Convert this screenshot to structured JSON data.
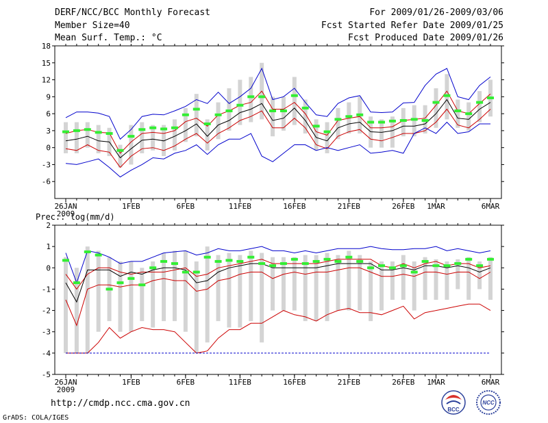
{
  "header": {
    "title": "DERF/NCC/BCC Monthly Forecast",
    "member": "Member Size=40",
    "variable": "Mean Surf. Temp.: °C",
    "period": "For 2009/01/26-2009/03/06",
    "start": "Fcst Started Refer Date 2009/01/25",
    "produced": "Fcst Produced Date 2009/01/26"
  },
  "footer": {
    "url": "http://cmdp.ncc.cma.gov.cn",
    "credit": "GrADS: COLA/IGES",
    "logo_bcc": "BCC",
    "logo_ncc": "NCC"
  },
  "colors": {
    "max": "#0000cc",
    "mean": "#000000",
    "spread": "#cc0000",
    "median": "#33ee33",
    "box": "#d4d4d4"
  },
  "chart_data": [
    {
      "type": "line",
      "title": "Mean Surf. Temp.: °C",
      "xlabel": "",
      "ylabel": "°C",
      "ylim": [
        -9,
        18
      ],
      "yticks": [
        -6,
        -3,
        0,
        3,
        6,
        9,
        12,
        15,
        18
      ],
      "x_tick_labels": [
        "26JAN",
        "1FEB",
        "6FEB",
        "11FEB",
        "16FEB",
        "21FEB",
        "26FEB",
        "1MAR",
        "6MAR"
      ],
      "x_tick_days": [
        0,
        6,
        11,
        16,
        21,
        26,
        31,
        34,
        39
      ],
      "year_label": "2009",
      "days": 40,
      "series": [
        {
          "name": "max",
          "values": [
            5.3,
            6.3,
            6.3,
            6.1,
            5.5,
            1.5,
            3.2,
            5.5,
            5.9,
            5.8,
            6.5,
            7.3,
            8.5,
            7.8,
            9.8,
            7.8,
            9.0,
            10.5,
            14.0,
            8.5,
            9.0,
            10.5,
            8.0,
            5.8,
            5.5,
            7.8,
            8.8,
            9.2,
            6.3,
            6.2,
            6.3,
            7.9,
            8.0,
            11.0,
            13.0,
            14.0,
            9.0,
            8.5,
            11.0,
            12.5
          ]
        },
        {
          "name": "p90",
          "values": [
            2.5,
            3.0,
            3.2,
            2.7,
            2.6,
            -1.0,
            1.0,
            2.5,
            2.7,
            2.5,
            3.0,
            4.6,
            5.2,
            3.8,
            5.8,
            6.5,
            7.5,
            8.0,
            10.0,
            6.8,
            6.8,
            8.0,
            6.0,
            2.8,
            2.2,
            4.8,
            5.2,
            5.5,
            3.5,
            3.5,
            3.7,
            4.8,
            5.0,
            5.2,
            7.5,
            10.0,
            6.5,
            6.0,
            7.8,
            9.5
          ]
        },
        {
          "name": "mean",
          "values": [
            1.2,
            1.5,
            2.0,
            1.2,
            1.0,
            -1.8,
            -0.2,
            1.3,
            1.5,
            1.2,
            2.0,
            3.0,
            4.2,
            2.0,
            4.0,
            4.8,
            6.2,
            6.8,
            7.8,
            4.8,
            5.2,
            7.0,
            4.8,
            1.8,
            1.2,
            3.5,
            4.2,
            4.5,
            2.8,
            2.7,
            3.0,
            3.8,
            3.8,
            4.2,
            6.0,
            8.5,
            5.2,
            5.0,
            6.8,
            8.0
          ]
        },
        {
          "name": "p10",
          "values": [
            -0.2,
            -0.5,
            0.5,
            -0.5,
            -0.8,
            -3.5,
            -1.5,
            -0.2,
            0.0,
            -0.5,
            0.3,
            1.5,
            2.5,
            0.8,
            2.5,
            3.5,
            4.8,
            5.5,
            6.5,
            3.5,
            3.5,
            5.2,
            3.5,
            0.5,
            -0.2,
            2.0,
            2.8,
            3.2,
            1.5,
            1.2,
            1.8,
            2.5,
            2.5,
            3.0,
            4.5,
            6.8,
            4.0,
            3.5,
            5.0,
            6.8
          ]
        },
        {
          "name": "min",
          "values": [
            -2.8,
            -3.0,
            -2.5,
            -2.0,
            -3.5,
            -5.2,
            -4.0,
            -3.0,
            -1.8,
            -2.0,
            -1.0,
            -0.5,
            0.5,
            -1.2,
            0.5,
            1.5,
            1.5,
            2.5,
            -1.5,
            -2.5,
            -1.0,
            0.5,
            0.5,
            -0.5,
            0.0,
            -0.5,
            0.0,
            0.5,
            -1.0,
            -0.8,
            -0.5,
            -1.0,
            2.5,
            3.5,
            2.5,
            4.5,
            2.5,
            2.8,
            4.2,
            4.2
          ]
        },
        {
          "name": "median",
          "values": [
            2.8,
            3.0,
            3.2,
            2.7,
            2.5,
            -0.5,
            2.0,
            3.2,
            3.5,
            3.3,
            3.5,
            5.8,
            6.8,
            4.2,
            5.8,
            6.5,
            7.5,
            9.0,
            9.0,
            6.5,
            6.5,
            9.2,
            7.0,
            3.8,
            2.8,
            5.0,
            5.5,
            5.8,
            4.5,
            4.5,
            4.7,
            4.8,
            5.0,
            4.8,
            8.0,
            9.2,
            6.5,
            6.0,
            8.0,
            8.8
          ]
        }
      ],
      "box_low": [
        -1.0,
        -1.0,
        0.0,
        -1.0,
        -1.5,
        -3.5,
        -3.0,
        -1.0,
        -0.5,
        -1.5,
        -0.5,
        1.0,
        2.0,
        -0.5,
        1.5,
        3.0,
        4.0,
        4.5,
        5.0,
        2.0,
        3.0,
        4.0,
        2.5,
        -0.5,
        -1.0,
        1.5,
        2.5,
        2.5,
        0.0,
        0.0,
        0.0,
        2.0,
        2.0,
        2.5,
        3.5,
        5.0,
        3.5,
        3.0,
        4.5,
        5.5
      ],
      "box_high": [
        4.5,
        4.5,
        4.5,
        4.0,
        3.5,
        0.5,
        4.0,
        4.5,
        4.0,
        4.0,
        5.0,
        7.0,
        9.5,
        5.0,
        8.0,
        10.5,
        12.0,
        12.5,
        15.0,
        9.0,
        9.0,
        12.5,
        8.5,
        5.0,
        4.5,
        7.0,
        8.0,
        9.0,
        5.5,
        5.0,
        5.5,
        7.0,
        7.5,
        7.5,
        10.5,
        13.0,
        8.5,
        8.0,
        10.0,
        12.0
      ]
    },
    {
      "type": "line",
      "title": "Prec.: log(mm/d)",
      "xlabel": "",
      "ylabel": "log(mm/d)",
      "ylim": [
        -5,
        2
      ],
      "yticks": [
        -5,
        -4,
        -3,
        -2,
        -1,
        0,
        1,
        2
      ],
      "x_tick_labels": [
        "26JAN",
        "1FEB",
        "6FEB",
        "11FEB",
        "16FEB",
        "21FEB",
        "26FEB",
        "1MAR",
        "6MAR"
      ],
      "x_tick_days": [
        0,
        6,
        11,
        16,
        21,
        26,
        31,
        34,
        39
      ],
      "year_label": "2009",
      "days": 40,
      "series": [
        {
          "name": "max",
          "values": [
            0.7,
            -0.7,
            0.8,
            0.7,
            0.5,
            0.2,
            0.3,
            0.3,
            0.5,
            0.7,
            0.75,
            0.8,
            0.6,
            0.7,
            0.9,
            0.8,
            0.8,
            0.9,
            1.0,
            0.8,
            0.8,
            0.7,
            0.8,
            0.7,
            0.8,
            0.9,
            0.9,
            0.9,
            1.0,
            0.9,
            0.85,
            0.85,
            0.9,
            0.9,
            1.0,
            0.8,
            0.9,
            0.8,
            0.7,
            0.8
          ]
        },
        {
          "name": "p90",
          "values": [
            -0.3,
            -1.0,
            -0.3,
            0.0,
            0.0,
            -0.2,
            -0.3,
            -0.2,
            -0.2,
            -0.2,
            -0.1,
            0.0,
            -0.4,
            -0.3,
            0.0,
            0.1,
            0.2,
            0.3,
            0.4,
            0.2,
            0.2,
            0.2,
            0.2,
            0.2,
            0.3,
            0.4,
            0.4,
            0.4,
            0.4,
            0.1,
            0.0,
            0.2,
            0.0,
            0.2,
            0.3,
            0.1,
            0.2,
            0.2,
            0.0,
            0.1
          ]
        },
        {
          "name": "mean",
          "values": [
            -0.7,
            -1.6,
            -0.1,
            -0.1,
            -0.1,
            -0.4,
            -0.2,
            -0.3,
            -0.1,
            0.0,
            0.0,
            -0.1,
            -0.7,
            -0.6,
            -0.2,
            0.0,
            0.1,
            0.2,
            0.2,
            0.0,
            0.0,
            0.0,
            0.0,
            0.0,
            0.1,
            0.2,
            0.2,
            0.2,
            0.2,
            -0.1,
            -0.1,
            0.0,
            -0.1,
            0.1,
            0.1,
            0.0,
            0.1,
            0.0,
            -0.2,
            0.0
          ]
        },
        {
          "name": "p10",
          "values": [
            -1.5,
            -2.7,
            -1.0,
            -0.8,
            -0.8,
            -0.9,
            -0.8,
            -0.8,
            -0.6,
            -0.5,
            -0.6,
            -0.6,
            -1.1,
            -1.0,
            -0.6,
            -0.5,
            -0.3,
            -0.2,
            -0.2,
            -0.5,
            -0.3,
            -0.2,
            -0.3,
            -0.2,
            -0.2,
            -0.1,
            0.0,
            0.0,
            -0.2,
            -0.4,
            -0.4,
            -0.3,
            -0.4,
            -0.2,
            -0.2,
            -0.3,
            -0.2,
            -0.2,
            -0.5,
            -0.2
          ]
        },
        {
          "name": "min",
          "values": [
            -4.0,
            -4.0,
            -4.0,
            -3.5,
            -2.8,
            -3.3,
            -3.0,
            -2.8,
            -2.9,
            -2.9,
            -3.0,
            -3.5,
            -4.0,
            -3.9,
            -3.3,
            -2.9,
            -2.9,
            -2.6,
            -2.6,
            -2.3,
            -2.0,
            -2.2,
            -2.3,
            -2.5,
            -2.2,
            -2.0,
            -1.9,
            -2.1,
            -2.1,
            -2.2,
            -2.0,
            -1.8,
            -2.4,
            -2.1,
            -2.0,
            -1.9,
            -1.8,
            -1.7,
            -1.7,
            -2.0
          ]
        },
        {
          "name": "median",
          "values": [
            0.35,
            -0.7,
            0.75,
            0.6,
            -1.0,
            -0.7,
            -0.5,
            -0.8,
            0.0,
            0.3,
            0.2,
            -0.2,
            -0.2,
            0.5,
            0.3,
            0.35,
            0.3,
            0.5,
            0.2,
            0.1,
            0.2,
            0.4,
            0.2,
            0.3,
            0.4,
            0.3,
            0.5,
            0.3,
            0.0,
            0.1,
            0.0,
            0.1,
            -0.2,
            0.3,
            0.1,
            0.1,
            0.2,
            0.4,
            0.1,
            0.4
          ]
        },
        {
          "name": "floor",
          "values": [
            -4.0,
            -4.0,
            -4.0,
            -4.0,
            -4.0,
            -4.0,
            -4.0,
            -4.0,
            -4.0,
            -4.0,
            -4.0,
            -4.0,
            -4.0,
            -4.0,
            -4.0,
            -4.0,
            -4.0,
            -4.0,
            -4.0,
            -4.0,
            -4.0,
            -4.0,
            -4.0,
            -4.0,
            -4.0,
            -4.0,
            -4.0,
            -4.0,
            -4.0,
            -4.0,
            -4.0,
            -4.0,
            -4.0,
            -4.0,
            -4.0,
            -4.0,
            -4.0,
            -4.0,
            -4.0,
            -4.0
          ]
        }
      ],
      "box_low": [
        -4.0,
        -4.0,
        -4.0,
        -3.0,
        -2.5,
        -3.0,
        -3.0,
        -2.5,
        -2.8,
        -2.5,
        -2.5,
        -3.0,
        -4.0,
        -3.5,
        -2.5,
        -2.8,
        -2.8,
        -2.5,
        -3.5,
        -2.0,
        -2.0,
        -2.0,
        -2.5,
        -2.5,
        -2.5,
        -2.0,
        -2.0,
        -2.0,
        -2.5,
        -2.0,
        -1.5,
        -1.5,
        -2.0,
        -1.5,
        -1.5,
        -1.5,
        -1.0,
        -1.5,
        -1.0,
        -1.5
      ],
      "box_high": [
        0.5,
        0.0,
        1.0,
        0.8,
        0.5,
        0.3,
        0.3,
        0.0,
        0.3,
        0.7,
        0.8,
        0.8,
        0.3,
        1.0,
        0.6,
        0.7,
        0.6,
        0.8,
        0.7,
        0.5,
        0.5,
        0.5,
        0.6,
        0.6,
        0.7,
        0.6,
        0.8,
        0.6,
        0.3,
        0.3,
        0.3,
        0.6,
        0.3,
        0.5,
        0.4,
        0.3,
        0.4,
        0.5,
        0.3,
        0.5
      ]
    }
  ]
}
